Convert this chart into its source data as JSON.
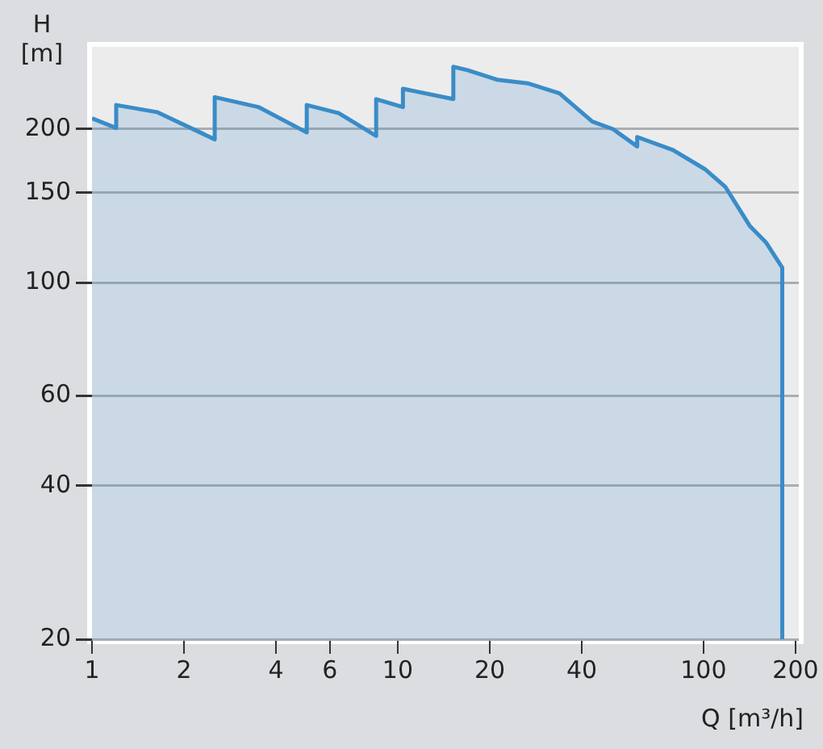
{
  "chart_data": {
    "type": "area",
    "xlabel": "Q [m³/h]",
    "ylabel": "H [m]",
    "log": "xy",
    "grid": "y",
    "xlim": [
      1,
      205
    ],
    "ylim": [
      20,
      290
    ],
    "xticks": [
      1,
      2,
      4,
      6,
      10,
      20,
      40,
      100,
      200
    ],
    "yticks": [
      20,
      40,
      60,
      100,
      150,
      200
    ],
    "series": [
      {
        "color": "#3a8cc8",
        "x": [
          1,
          1.2,
          1.2,
          1.63,
          2.52,
          2.52,
          3.5,
          5.04,
          5.04,
          6.41,
          8.5,
          8.5,
          10.4,
          10.4,
          15.2,
          15.2,
          16.9,
          21.1,
          26.6,
          33.8,
          43.3,
          50.6,
          60.7,
          60.7,
          79.5,
          101,
          118,
          142,
          160,
          181,
          181
        ],
        "values": [
          210,
          201,
          223,
          216,
          191,
          231,
          221,
          197,
          223,
          215,
          194,
          229,
          221,
          240,
          229,
          265,
          261,
          250,
          246,
          235,
          207,
          200,
          185,
          193,
          182,
          167,
          154,
          129,
          120,
          107,
          20
        ]
      }
    ]
  }
}
